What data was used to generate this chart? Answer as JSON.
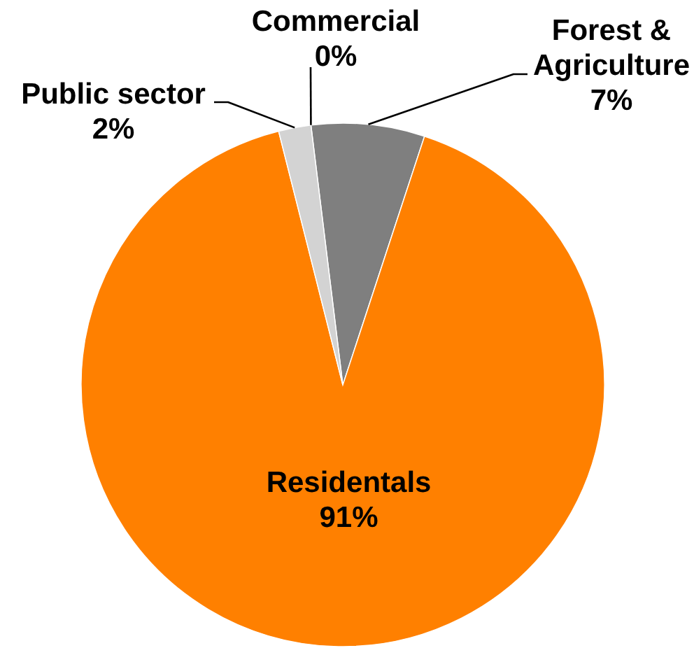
{
  "chart_data": {
    "type": "pie",
    "categories": [
      "Forest & Agriculture",
      "Residentals",
      "Public sector",
      "Commercial"
    ],
    "values": [
      7,
      91,
      2,
      0
    ],
    "value_labels": [
      "7%",
      "91%",
      "2%",
      "0%"
    ],
    "colors": [
      "#7f7f7f",
      "#ff8000",
      "#d3d3d3",
      "#595959"
    ]
  }
}
